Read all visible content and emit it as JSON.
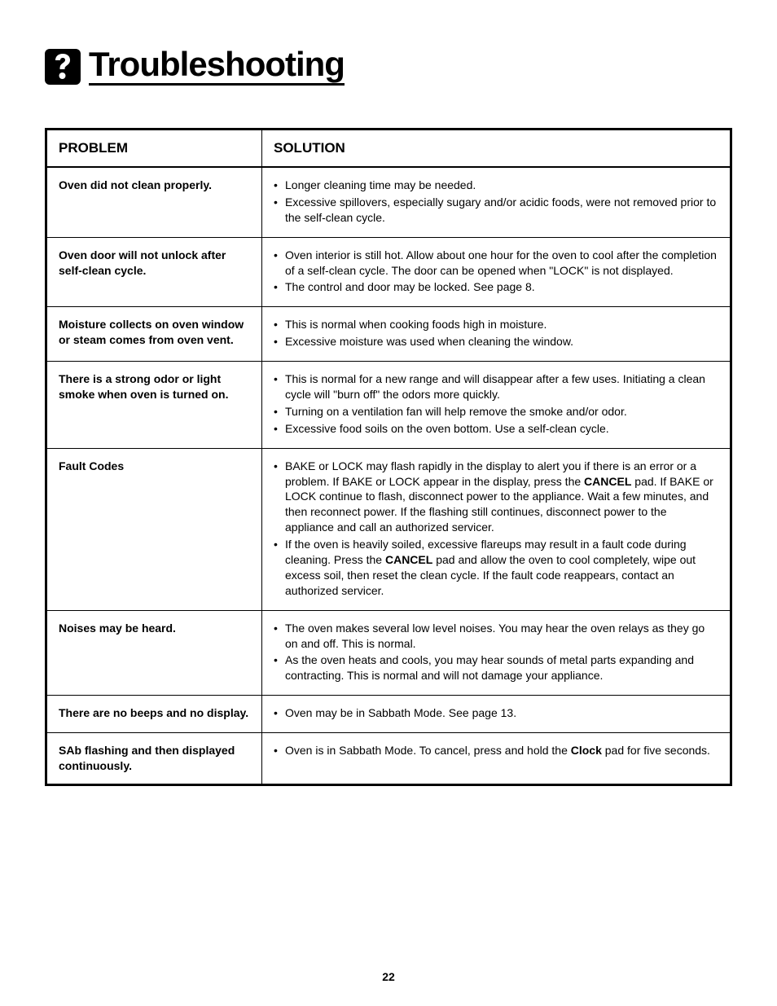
{
  "pageTitle": "Troubleshooting",
  "pageNumber": "22",
  "table": {
    "columns": [
      "PROBLEM",
      "SOLUTION"
    ],
    "rows": [
      {
        "problem": "Oven did not clean properly.",
        "solutions": [
          [
            {
              "t": "Longer cleaning time may be needed."
            }
          ],
          [
            {
              "t": "Excessive spillovers, especially sugary and/or acidic foods, were not removed prior to the self-clean cycle."
            }
          ]
        ]
      },
      {
        "problem": "Oven door will not unlock after self-clean cycle.",
        "solutions": [
          [
            {
              "t": "Oven interior is still hot.  Allow about one hour for the oven to cool after the completion of a self-clean cycle. The door can be opened when \"LOCK\" is not displayed."
            }
          ],
          [
            {
              "t": "The control and door may be locked. See page 8."
            }
          ]
        ]
      },
      {
        "problem": "Moisture collects on oven window or steam comes from oven vent.",
        "solutions": [
          [
            {
              "t": "This is normal when cooking foods high in moisture."
            }
          ],
          [
            {
              "t": "Excessive moisture was used when cleaning the window."
            }
          ]
        ]
      },
      {
        "problem": "There is a strong odor or light smoke when oven is turned on.",
        "solutions": [
          [
            {
              "t": "This is normal for a new range and will disappear after a few uses.  Initiating a clean cycle will \"burn off\" the odors more quickly."
            }
          ],
          [
            {
              "t": "Turning on a ventilation fan will help remove the smoke and/or odor."
            }
          ],
          [
            {
              "t": "Excessive food soils on the oven bottom.  Use a self-clean cycle."
            }
          ]
        ]
      },
      {
        "problem": "Fault Codes",
        "solutions": [
          [
            {
              "t": "BAKE or LOCK may flash rapidly in the display to alert you if there is an error or a problem.  If BAKE or LOCK appear in the display, press the "
            },
            {
              "t": "CANCEL",
              "b": true
            },
            {
              "t": " pad.  If BAKE or LOCK continue to flash, disconnect power to the appliance.  Wait a few minutes, and then reconnect power. If the flashing still continues, disconnect power to the appliance and call an authorized servicer."
            }
          ],
          [
            {
              "t": "If the oven is heavily soiled, excessive flareups may result in a fault code during cleaning. Press the "
            },
            {
              "t": "CANCEL",
              "b": true
            },
            {
              "t": " pad and allow the oven to cool completely, wipe out excess soil, then reset the clean cycle. If the fault code reappears, contact an authorized servicer."
            }
          ]
        ]
      },
      {
        "problem": "Noises may be heard.",
        "solutions": [
          [
            {
              "t": "The oven makes several low level noises. You may hear the oven relays as they go on and off.  This is normal."
            }
          ],
          [
            {
              "t": "As the oven heats and cools, you may hear sounds of metal parts expanding and contracting. This is normal and will not damage your appliance."
            }
          ]
        ]
      },
      {
        "problem": "There are no beeps and no display.",
        "solutions": [
          [
            {
              "t": "Oven may be in Sabbath Mode. See page 13."
            }
          ]
        ]
      },
      {
        "problem": "SAb flashing and then displayed continuously.",
        "solutions": [
          [
            {
              "t": "Oven is in Sabbath Mode. To cancel, press and hold the "
            },
            {
              "t": "Clock",
              "b": true
            },
            {
              "t": " pad for five seconds."
            }
          ]
        ]
      }
    ]
  }
}
